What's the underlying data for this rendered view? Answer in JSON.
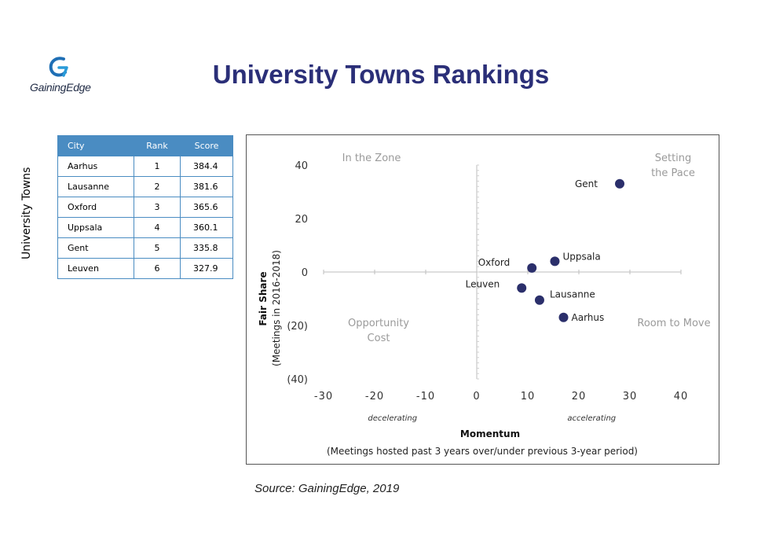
{
  "header": {
    "logo_text": "GainingEdge",
    "title": "University Towns Rankings"
  },
  "side_label": "University Towns",
  "table": {
    "columns": [
      "City",
      "Rank",
      "Score"
    ],
    "rows": [
      {
        "city": "Aarhus",
        "rank": "1",
        "score": "384.4"
      },
      {
        "city": "Lausanne",
        "rank": "2",
        "score": "381.6"
      },
      {
        "city": "Oxford",
        "rank": "3",
        "score": "365.6"
      },
      {
        "city": "Uppsala",
        "rank": "4",
        "score": "360.1"
      },
      {
        "city": "Gent",
        "rank": "5",
        "score": "335.8"
      },
      {
        "city": "Leuven",
        "rank": "6",
        "score": "327.9"
      }
    ]
  },
  "colors": {
    "accent": "#4a8cc2",
    "title": "#2b2f78",
    "point": "#2b2f6b",
    "quadrant_text": "#9a9a9a"
  },
  "chart_data": {
    "type": "scatter",
    "xlim": [
      -30,
      40
    ],
    "ylim": [
      -40,
      40
    ],
    "x_ticks": [
      "-30",
      "-20",
      "-10",
      "0",
      "10",
      "20",
      "30",
      "40"
    ],
    "y_ticks": [
      "40",
      "20",
      "0",
      "(20)",
      "(40)"
    ],
    "y_tick_values": [
      40,
      20,
      0,
      -20,
      -40
    ],
    "xlabel": "Momentum",
    "xlabel_sub": "(Meetings hosted past 3 years over/under previous 3-year period)",
    "ylabel": "Fair Share",
    "ylabel_sub": "(Meetings in 2016-2018)",
    "x_annotations": {
      "left": "decelerating",
      "right": "accelerating"
    },
    "quadrants": {
      "top_left": [
        "In the Zone"
      ],
      "top_right": [
        "Setting",
        "the Pace"
      ],
      "bottom_left": [
        "Opportunity",
        "Cost"
      ],
      "bottom_right": [
        "Room to Move"
      ]
    },
    "grid": false,
    "points": [
      {
        "label": "Gent",
        "x": 28,
        "y": 33
      },
      {
        "label": "Uppsala",
        "x": 15.3,
        "y": 4
      },
      {
        "label": "Oxford",
        "x": 10.8,
        "y": 1.5
      },
      {
        "label": "Leuven",
        "x": 8.8,
        "y": -6
      },
      {
        "label": "Lausanne",
        "x": 12.3,
        "y": -10.5
      },
      {
        "label": "Aarhus",
        "x": 17,
        "y": -17
      }
    ]
  },
  "source": "Source: GainingEdge, 2019"
}
